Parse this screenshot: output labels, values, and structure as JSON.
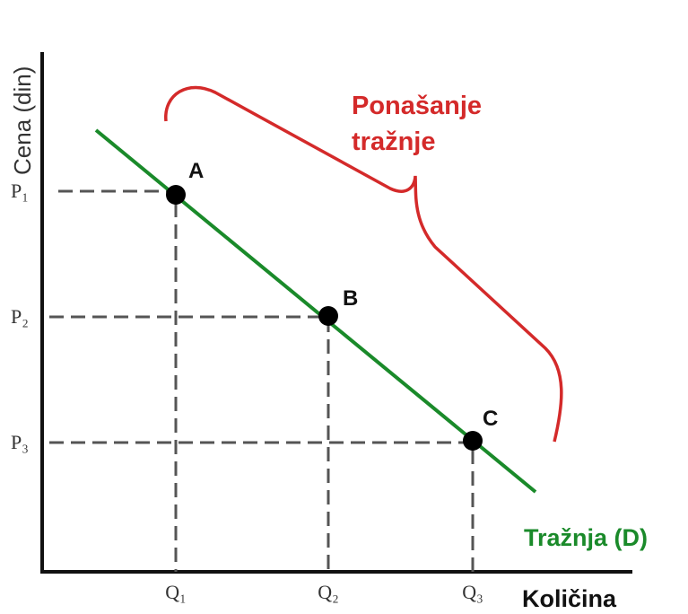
{
  "axes": {
    "y_label": "Cena (din)",
    "x_label": "Količina"
  },
  "price_levels": [
    "P₁",
    "P₂",
    "P₃"
  ],
  "quantity_levels": [
    "Q₁",
    "Q₂",
    "Q₃"
  ],
  "points": [
    "A",
    "B",
    "C"
  ],
  "curve_label": "Tražnja (D)",
  "annotation": [
    "Ponašanje",
    "tražnje"
  ]
}
